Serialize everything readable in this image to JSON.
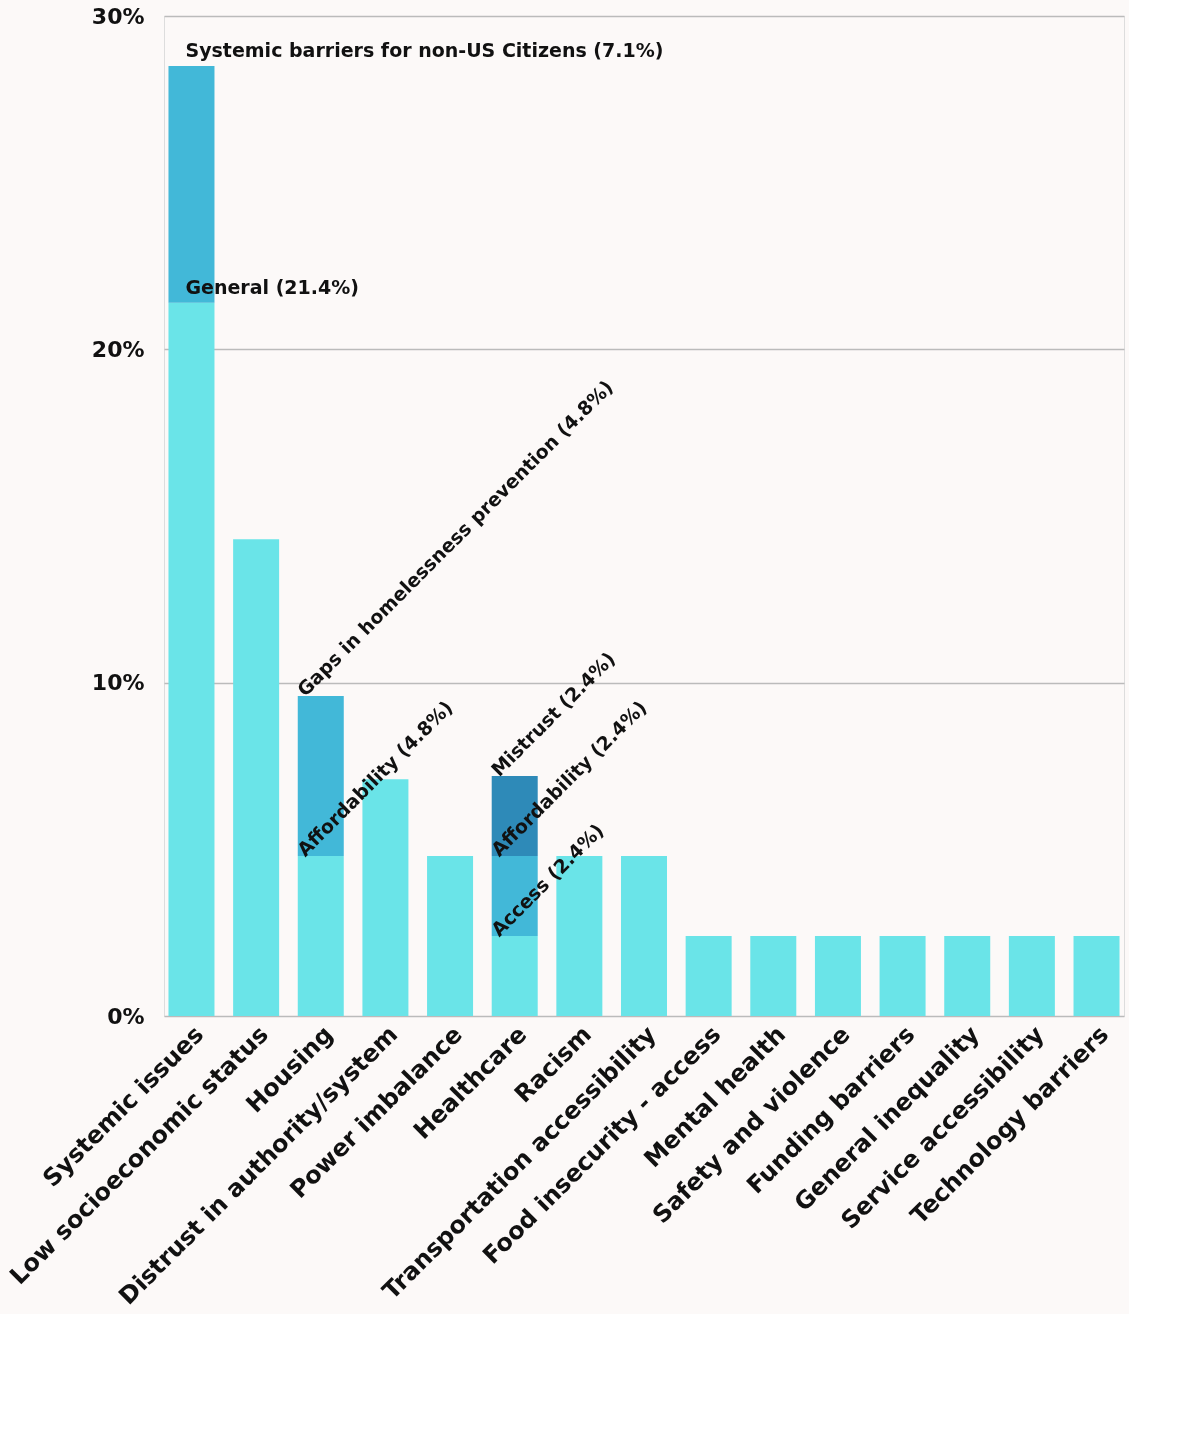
{
  "chart_data": {
    "type": "bar",
    "stacked": true,
    "categories": [
      "Systemic issues",
      "Low socioeconomic status",
      "Housing",
      "Distrust in authority/system",
      "Power imbalance",
      "Healthcare",
      "Racism",
      "Transportation accessibility",
      "Food insecurity - access",
      "Mental health",
      "Safety and violence",
      "Funding barriers",
      "General inequality",
      "Service accessibility",
      "Technology barriers"
    ],
    "series": [
      {
        "color": "#6ae4e8",
        "values": [
          21.4,
          14.3,
          4.8,
          7.1,
          4.8,
          2.4,
          4.8,
          4.8,
          2.4,
          2.4,
          2.4,
          2.4,
          2.4,
          2.4,
          2.4
        ]
      },
      {
        "color": "#42b8d8",
        "values": [
          7.1,
          null,
          4.8,
          null,
          null,
          2.4,
          null,
          null,
          null,
          null,
          null,
          null,
          null,
          null,
          null
        ]
      },
      {
        "color": "#2e8ab8",
        "values": [
          null,
          null,
          null,
          null,
          null,
          2.4,
          null,
          null,
          null,
          null,
          null,
          null,
          null,
          null,
          null
        ]
      }
    ],
    "ylim": [
      0,
      30
    ],
    "yticks": [
      {
        "value": 0,
        "label": "0%"
      },
      {
        "value": 10,
        "label": "10%"
      },
      {
        "value": 20,
        "label": "20%"
      },
      {
        "value": 30,
        "label": "30%"
      }
    ],
    "grid": "y",
    "legend": false,
    "annotations": [
      {
        "text": "General (21.4%)",
        "x": "Systemic issues",
        "y": 21.4
      },
      {
        "text": "Systemic barriers for non-US Citizens (7.1%)",
        "x": "Systemic issues",
        "y": 28.5
      },
      {
        "text": "Affordability (4.8%)",
        "x": "Housing",
        "y": 4.8
      },
      {
        "text": "Gaps in homelessness prevention (4.8%)",
        "x": "Housing",
        "y": 9.6
      },
      {
        "text": "Access (2.4%)",
        "x": "Healthcare",
        "y": 2.4
      },
      {
        "text": "Affordability (2.4%)",
        "x": "Healthcare",
        "y": 4.8
      },
      {
        "text": "Mistrust (2.4%)",
        "x": "Healthcare",
        "y": 7.2
      }
    ]
  }
}
